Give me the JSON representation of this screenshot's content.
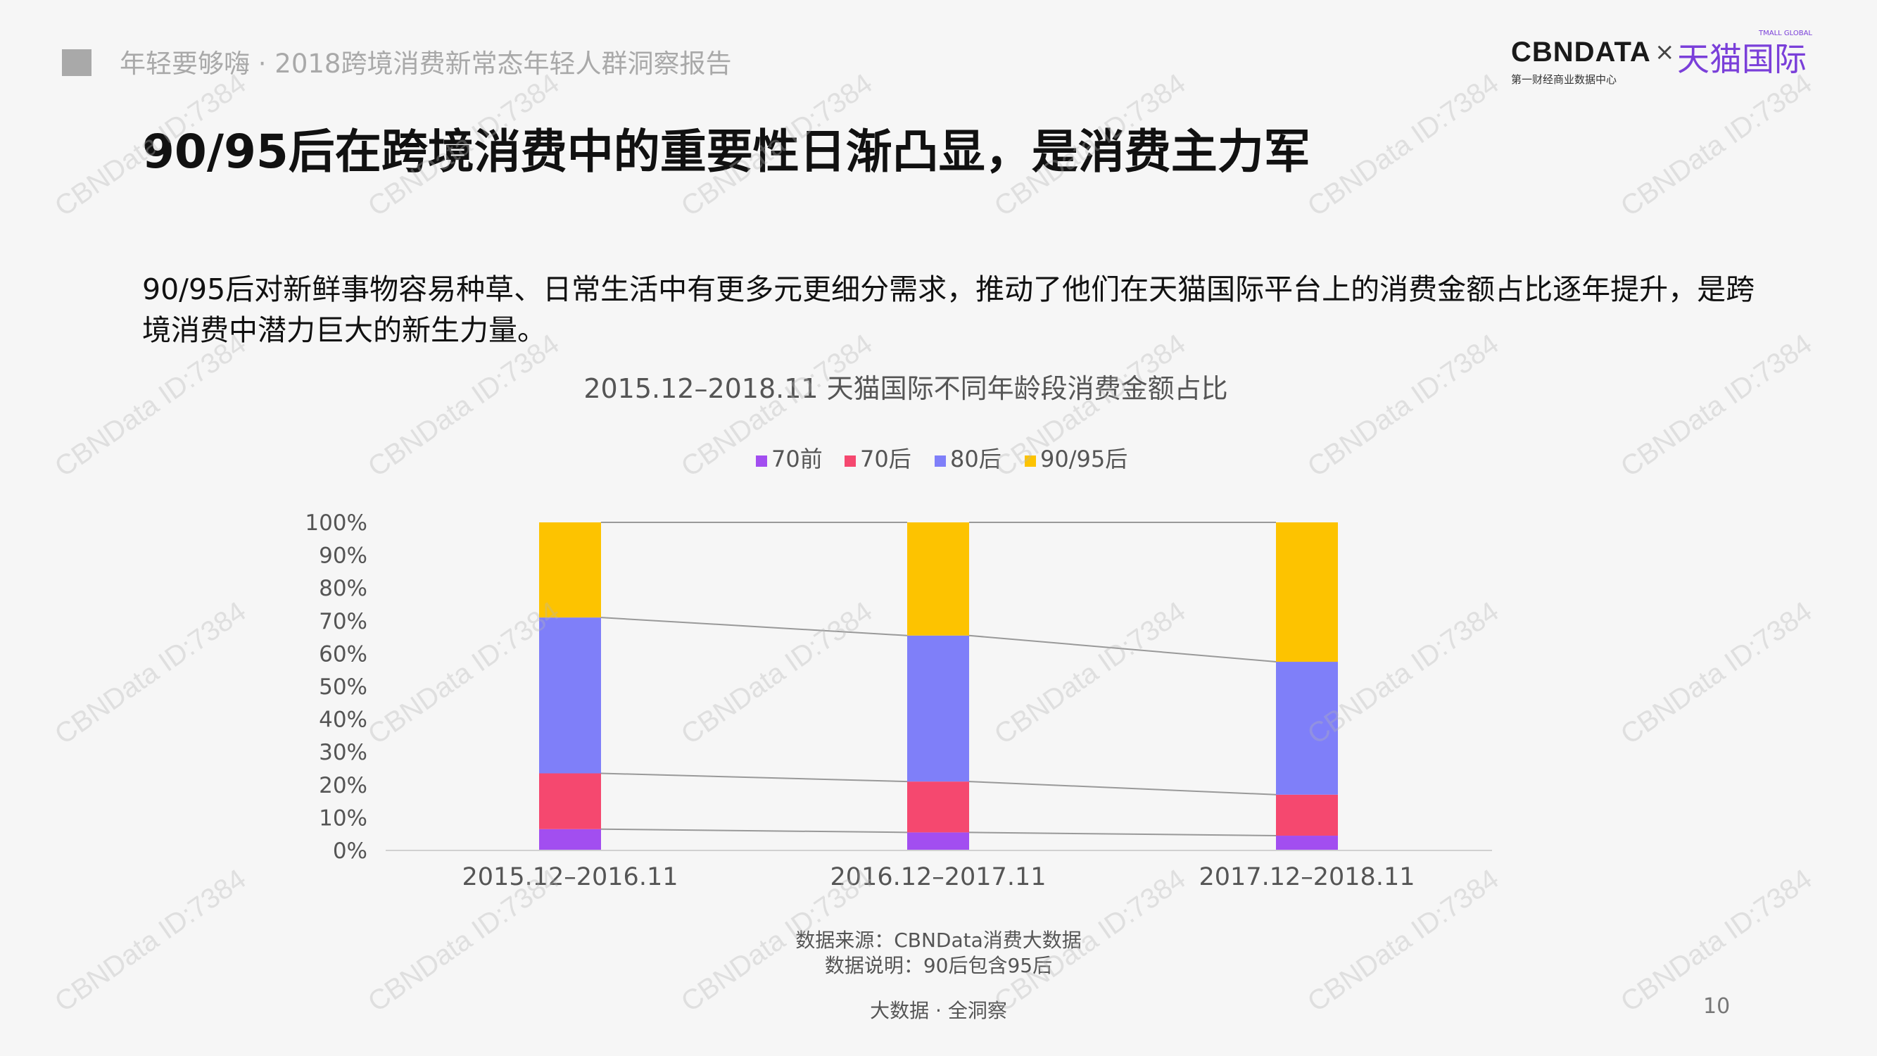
{
  "header": {
    "report_title": "年轻要够嗨 · 2018跨境消费新常态年轻人群洞察报告",
    "logo": {
      "cbndata": "CBNDATA",
      "times": "×",
      "tmall": "天猫国际",
      "tmall_global": "TMALL GLOBAL",
      "subtitle": "第一财经商业数据中心"
    }
  },
  "main_title": "90/95后在跨境消费中的重要性日渐凸显，是消费主力军",
  "description": "90/95后对新鲜事物容易种草、日常生活中有更多元更细分需求，推动了他们在天猫国际平台上的消费金额占比逐年提升，是跨境消费中潜力巨大的新生力量。",
  "chart_data": {
    "type": "bar",
    "stacked": true,
    "title": "2015.12–2018.11 天猫国际不同年龄段消费金额占比",
    "categories": [
      "2015.12–2016.11",
      "2016.12–2017.11",
      "2017.12–2018.11"
    ],
    "series": [
      {
        "name": "70前",
        "color": "#a24ef0",
        "values": [
          6.5,
          5.5,
          4.5
        ]
      },
      {
        "name": "70后",
        "color": "#f5486f",
        "values": [
          17.0,
          15.5,
          12.5
        ]
      },
      {
        "name": "80后",
        "color": "#7f7ff9",
        "values": [
          47.5,
          44.5,
          40.5
        ]
      },
      {
        "name": "90/95后",
        "color": "#fdc300",
        "values": [
          29.0,
          34.5,
          42.5
        ]
      }
    ],
    "yticks": [
      "0%",
      "10%",
      "20%",
      "30%",
      "40%",
      "50%",
      "60%",
      "70%",
      "80%",
      "90%",
      "100%"
    ],
    "ylim": [
      0,
      100
    ],
    "legend_position": "top-center",
    "series_lines": true,
    "grid": false
  },
  "source": {
    "line1": "数据来源：CBNData消费大数据",
    "line2": "数据说明：90后包含95后"
  },
  "footer": "大数据 · 全洞察",
  "page_number": "10",
  "watermark": "CBNData ID:7384"
}
